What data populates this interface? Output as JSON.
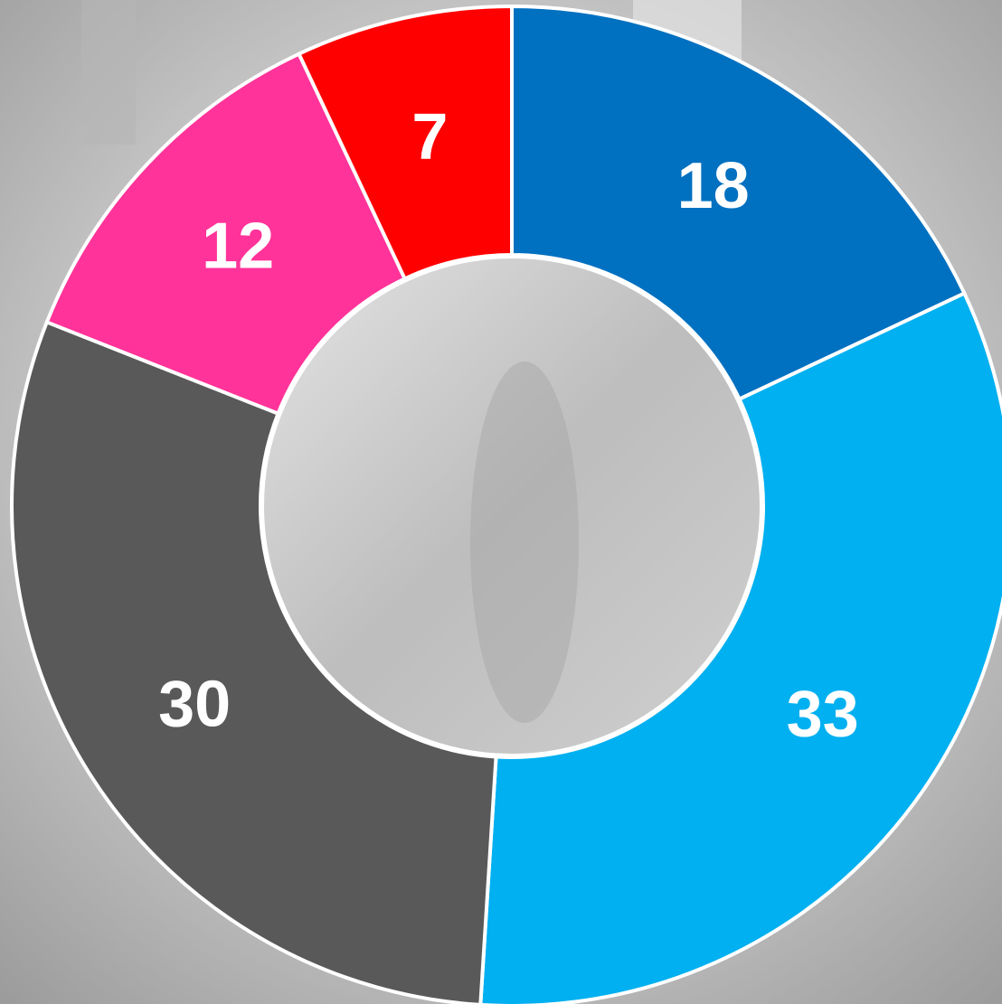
{
  "chart_data": {
    "type": "donut",
    "values": [
      18,
      33,
      30,
      12,
      7
    ],
    "colors": [
      "#0070c0",
      "#00b0f0",
      "#595959",
      "#ff3399",
      "#ff0000"
    ]
  }
}
